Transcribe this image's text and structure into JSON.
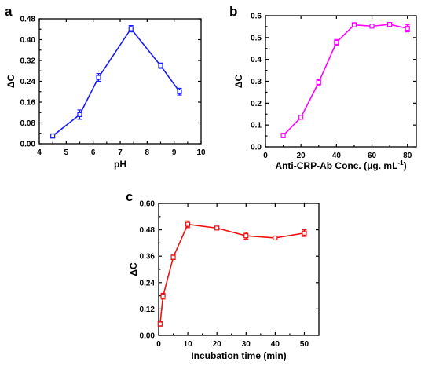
{
  "chart_data": [
    {
      "panel": "a",
      "type": "line",
      "color": "#1a1aff",
      "xlabel": "pH",
      "ylabel": "ΔC",
      "xlim": [
        4,
        10
      ],
      "ylim": [
        0,
        0.48
      ],
      "xticks": [
        "4",
        "5",
        "6",
        "7",
        "8",
        "9",
        "10"
      ],
      "yticks": [
        "0.00",
        "0.08",
        "0.16",
        "0.24",
        "0.32",
        "0.40",
        "0.48"
      ],
      "x": [
        4.5,
        5.5,
        6.2,
        7.4,
        8.5,
        9.2
      ],
      "y": [
        0.03,
        0.112,
        0.255,
        0.442,
        0.3,
        0.2
      ],
      "err": [
        0.008,
        0.018,
        0.015,
        0.012,
        0.01,
        0.013
      ]
    },
    {
      "panel": "b",
      "type": "line",
      "color": "#ff00ff",
      "xlabel": "Anti-CRP-Ab Conc. (μg. mL⁻¹)",
      "ylabel": "ΔC",
      "xlim": [
        0,
        85
      ],
      "ylim": [
        0,
        0.6
      ],
      "xticks": [
        "0",
        "20",
        "40",
        "60",
        "80"
      ],
      "yticks": [
        "0.0",
        "0.1",
        "0.2",
        "0.3",
        "0.4",
        "0.5",
        "0.6"
      ],
      "x": [
        10,
        20,
        30,
        40,
        50,
        60,
        70,
        80
      ],
      "y": [
        0.052,
        0.135,
        0.295,
        0.478,
        0.558,
        0.552,
        0.56,
        0.542
      ],
      "err": [
        0.01,
        0.008,
        0.012,
        0.013,
        0.01,
        0.008,
        0.009,
        0.016
      ]
    },
    {
      "panel": "c",
      "type": "line",
      "color": "#ee1111",
      "xlabel": "Incubation time (min)",
      "ylabel": "ΔC",
      "xlim": [
        0,
        55
      ],
      "ylim": [
        0,
        0.6
      ],
      "xticks": [
        "0",
        "10",
        "20",
        "30",
        "40",
        "50"
      ],
      "yticks": [
        "0.00",
        "0.12",
        "0.24",
        "0.36",
        "0.48",
        "0.60"
      ],
      "x": [
        0.5,
        1.5,
        5,
        10,
        20,
        30,
        40,
        50
      ],
      "y": [
        0.052,
        0.178,
        0.355,
        0.505,
        0.488,
        0.453,
        0.443,
        0.465
      ],
      "err": [
        0.01,
        0.013,
        0.01,
        0.015,
        0.008,
        0.015,
        0.008,
        0.015
      ]
    }
  ]
}
